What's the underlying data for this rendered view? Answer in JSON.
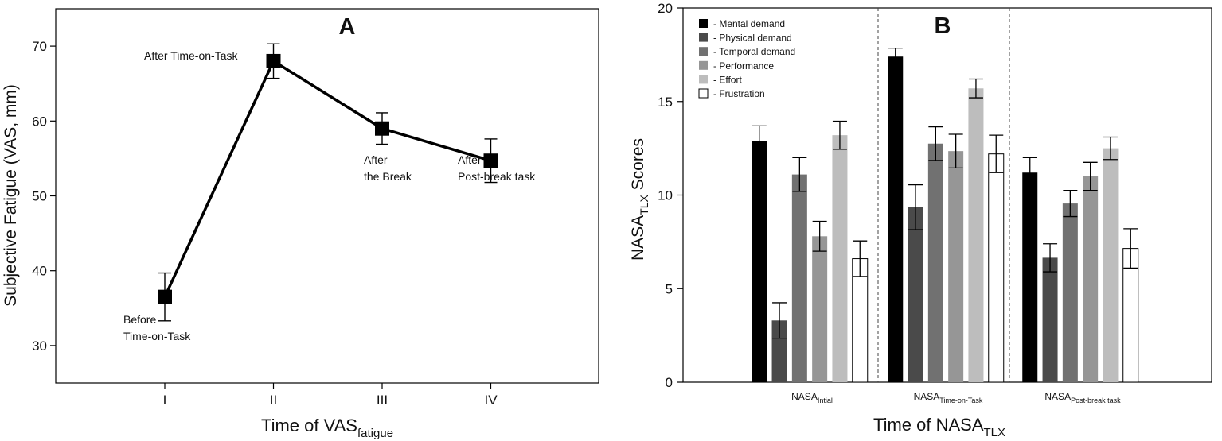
{
  "chart_data": [
    {
      "type": "line",
      "panel_label": "A",
      "xlabel": "Time of VAS",
      "xlabel_sub": "fatigue",
      "ylabel": "Subjective Fatigue (VAS, mm)",
      "ylim": [
        25,
        75
      ],
      "yticks": [
        30,
        40,
        50,
        60,
        70
      ],
      "categories": [
        "I",
        "II",
        "III",
        "IV"
      ],
      "values": [
        36.5,
        68,
        59,
        54.7
      ],
      "errors": [
        3.2,
        2.3,
        2.1,
        2.9
      ],
      "annotations": [
        {
          "lines": [
            "Before",
            "Time-on-Task"
          ]
        },
        {
          "lines": [
            "After  Time-on-Task"
          ]
        },
        {
          "lines": [
            "After",
            "the Break"
          ]
        },
        {
          "lines": [
            "After",
            "Post-break task"
          ]
        }
      ],
      "color": "#000000"
    },
    {
      "type": "bar",
      "panel_label": "B",
      "xlabel": "Time of NASA",
      "xlabel_sub": "TLX",
      "ylabel": "NASA",
      "ylabel_sub": "TLX",
      "ylabel_suffix": " Scores",
      "ylim": [
        0,
        20
      ],
      "yticks": [
        0,
        5,
        10,
        15,
        20
      ],
      "categories": [
        {
          "main": "NASA",
          "sub": "Intial"
        },
        {
          "main": "NASA",
          "sub": "Time-on-Task"
        },
        {
          "main": "NASA",
          "sub": "Post-break task"
        }
      ],
      "series": [
        {
          "name": "- Mental demand",
          "color": "#000000",
          "values": [
            12.9,
            17.4,
            11.2
          ],
          "errors": [
            0.8,
            0.45,
            0.8
          ]
        },
        {
          "name": "- Physical demand",
          "color": "#4a4a4a",
          "values": [
            3.3,
            9.35,
            6.65
          ],
          "errors": [
            0.95,
            1.2,
            0.75
          ]
        },
        {
          "name": "- Temporal demand",
          "color": "#717171",
          "values": [
            11.1,
            12.75,
            9.55
          ],
          "errors": [
            0.9,
            0.9,
            0.7
          ]
        },
        {
          "name": "- Performance",
          "color": "#969696",
          "values": [
            7.8,
            12.35,
            11.0
          ],
          "errors": [
            0.8,
            0.9,
            0.75
          ]
        },
        {
          "name": "- Effort",
          "color": "#bdbdbd",
          "values": [
            13.2,
            15.7,
            12.5
          ],
          "errors": [
            0.75,
            0.5,
            0.6
          ]
        },
        {
          "name": "- Frustration",
          "color": "#ffffff",
          "values": [
            6.6,
            12.2,
            7.15
          ],
          "errors": [
            0.95,
            1.0,
            1.05
          ]
        }
      ]
    }
  ]
}
